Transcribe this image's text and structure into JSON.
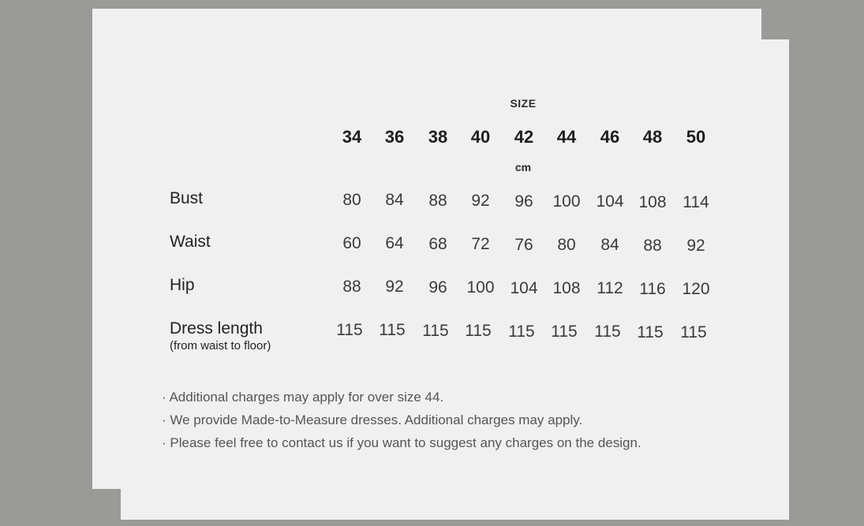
{
  "size_label": "SIZE",
  "unit_label": "cm",
  "sizes": [
    "34",
    "36",
    "38",
    "40",
    "42",
    "44",
    "46",
    "48",
    "50"
  ],
  "rows": [
    {
      "label": "Bust",
      "sublabel": "",
      "values": [
        "80",
        "84",
        "88",
        "92",
        "96",
        "100",
        "104",
        "108",
        "114"
      ]
    },
    {
      "label": "Waist",
      "sublabel": "",
      "values": [
        "60",
        "64",
        "68",
        "72",
        "76",
        "80",
        "84",
        "88",
        "92"
      ]
    },
    {
      "label": "Hip",
      "sublabel": "",
      "values": [
        "88",
        "92",
        "96",
        "100",
        "104",
        "108",
        "112",
        "116",
        "120"
      ]
    },
    {
      "label": "Dress length",
      "sublabel": "(from waist to floor)",
      "values": [
        "115",
        "115",
        "115",
        "115",
        "115",
        "115",
        "115",
        "115",
        "115"
      ]
    }
  ],
  "notes": [
    "· Additional charges may apply for over size 44.",
    "· We provide Made-to-Measure dresses. Additional charges may apply.",
    "· Please feel free to contact us if you want to suggest any charges on the design."
  ]
}
